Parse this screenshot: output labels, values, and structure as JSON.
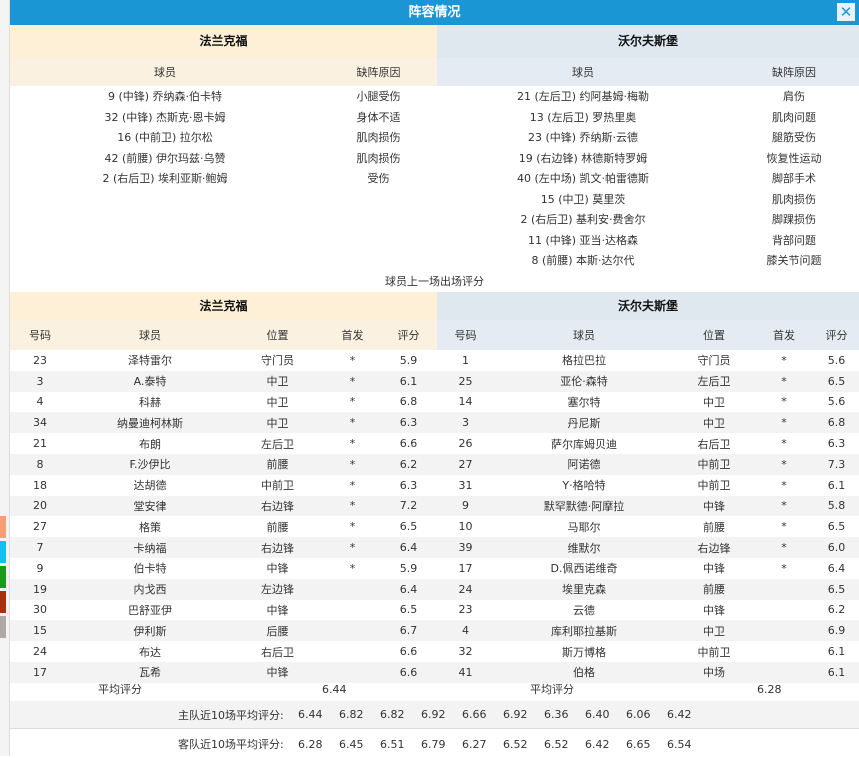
{
  "title": "阵容情况",
  "close_icon": "close-icon",
  "colors": {
    "titlebar": "#1a96d4",
    "home_header": "#fdf0d6",
    "away_header": "#dfe7ef"
  },
  "injuries": {
    "col_player": "球员",
    "col_reason": "缺阵原因",
    "home": {
      "team": "法兰克福",
      "rows": [
        {
          "player": "9 (中锋) 乔纳森·伯卡特",
          "reason": "小腿受伤"
        },
        {
          "player": "32 (中锋) 杰斯克·恩卡姆",
          "reason": "身体不适"
        },
        {
          "player": "16 (中前卫) 拉尔松",
          "reason": "肌肉损伤"
        },
        {
          "player": "42 (前腰) 伊尔玛兹·乌赞",
          "reason": "肌肉损伤"
        },
        {
          "player": "2 (右后卫) 埃利亚斯·鲍姆",
          "reason": "受伤"
        }
      ]
    },
    "away": {
      "team": "沃尔夫斯堡",
      "rows": [
        {
          "player": "21 (左后卫) 约阿基姆·梅勒",
          "reason": "肩伤"
        },
        {
          "player": "13 (左后卫) 罗热里奥",
          "reason": "肌肉问题"
        },
        {
          "player": "23 (中锋) 乔纳斯·云德",
          "reason": "腿筋受伤"
        },
        {
          "player": "19 (右边锋) 林德斯特罗姆",
          "reason": "恢复性运动"
        },
        {
          "player": "40 (左中场) 凯文·帕雷德斯",
          "reason": "脚部手术"
        },
        {
          "player": "15 (中卫) 莫里茨",
          "reason": "肌肉损伤"
        },
        {
          "player": "2 (右后卫) 基利安·费舍尔",
          "reason": "脚踝损伤"
        },
        {
          "player": "11 (中锋) 亚当·达格森",
          "reason": "背部问题"
        },
        {
          "player": "8 (前腰) 本斯·达尔代",
          "reason": "膝关节问题"
        }
      ]
    }
  },
  "ratings_note": "球员上一场出场评分",
  "ratings": {
    "cols": {
      "no": "号码",
      "player": "球员",
      "pos": "位置",
      "start": "首发",
      "score": "评分"
    },
    "avg_label": "平均评分",
    "home": {
      "team": "法兰克福",
      "avg": "6.44",
      "rows": [
        [
          "23",
          "泽特雷尔",
          "守门员",
          "*",
          "5.9"
        ],
        [
          "3",
          "A.泰特",
          "中卫",
          "*",
          "6.1"
        ],
        [
          "4",
          "科赫",
          "中卫",
          "*",
          "6.8"
        ],
        [
          "34",
          "纳曼迪柯林斯",
          "中卫",
          "*",
          "6.3"
        ],
        [
          "21",
          "布朗",
          "左后卫",
          "*",
          "6.6"
        ],
        [
          "8",
          "F.沙伊比",
          "前腰",
          "*",
          "6.2"
        ],
        [
          "18",
          "达胡德",
          "中前卫",
          "*",
          "6.3"
        ],
        [
          "20",
          "堂安律",
          "右边锋",
          "*",
          "7.2"
        ],
        [
          "27",
          "格策",
          "前腰",
          "*",
          "6.5"
        ],
        [
          "7",
          "卡纳福",
          "右边锋",
          "*",
          "6.4"
        ],
        [
          "9",
          "伯卡特",
          "中锋",
          "*",
          "5.9"
        ],
        [
          "19",
          "内戈西",
          "左边锋",
          "",
          "6.4"
        ],
        [
          "30",
          "巴舒亚伊",
          "中锋",
          "",
          "6.5"
        ],
        [
          "15",
          "伊利斯",
          "后腰",
          "",
          "6.7"
        ],
        [
          "24",
          "布达",
          "右后卫",
          "",
          "6.6"
        ],
        [
          "17",
          "瓦希",
          "中锋",
          "",
          "6.6"
        ]
      ]
    },
    "away": {
      "team": "沃尔夫斯堡",
      "avg": "6.28",
      "rows": [
        [
          "1",
          "格拉巴拉",
          "守门员",
          "*",
          "5.6"
        ],
        [
          "25",
          "亚伦·森特",
          "左后卫",
          "*",
          "6.5"
        ],
        [
          "14",
          "塞尔特",
          "中卫",
          "*",
          "5.6"
        ],
        [
          "3",
          "丹尼斯",
          "中卫",
          "*",
          "6.8"
        ],
        [
          "26",
          "萨尔库姆贝迪",
          "右后卫",
          "*",
          "6.3"
        ],
        [
          "27",
          "阿诺德",
          "中前卫",
          "*",
          "7.3"
        ],
        [
          "31",
          "Y·格哈特",
          "中前卫",
          "*",
          "6.1"
        ],
        [
          "9",
          "默罕默德·阿摩拉",
          "中锋",
          "*",
          "5.8"
        ],
        [
          "10",
          "马耶尔",
          "前腰",
          "*",
          "6.5"
        ],
        [
          "39",
          "维默尔",
          "右边锋",
          "*",
          "6.0"
        ],
        [
          "17",
          "D.佩西诺维奇",
          "中锋",
          "*",
          "6.4"
        ],
        [
          "24",
          "埃里克森",
          "前腰",
          "",
          "6.5"
        ],
        [
          "23",
          "云德",
          "中锋",
          "",
          "6.2"
        ],
        [
          "4",
          "库利耶拉基斯",
          "中卫",
          "",
          "6.9"
        ],
        [
          "32",
          "斯万博格",
          "中前卫",
          "",
          "6.1"
        ],
        [
          "41",
          "伯格",
          "中场",
          "",
          "6.1"
        ]
      ]
    }
  },
  "recent": {
    "home_label": "主队近10场平均评分:",
    "home": [
      "6.44",
      "6.82",
      "6.82",
      "6.92",
      "6.66",
      "6.92",
      "6.36",
      "6.40",
      "6.06",
      "6.42"
    ],
    "away_label": "客队近10场平均评分:",
    "away": [
      "6.28",
      "6.45",
      "6.51",
      "6.79",
      "6.27",
      "6.52",
      "6.52",
      "6.42",
      "6.65",
      "6.54"
    ]
  }
}
